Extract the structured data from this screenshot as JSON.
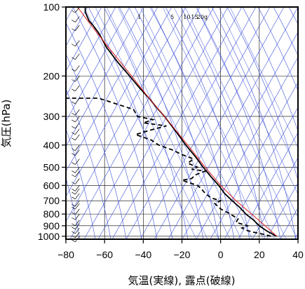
{
  "chart_data": {
    "type": "line",
    "title": "",
    "xlabel": "気温(実線), 露点(破線)",
    "ylabel": "気圧(hPa)",
    "xlim": [
      -80,
      40
    ],
    "ylim": [
      1030,
      100
    ],
    "y_scale": "log",
    "x_ticks": [
      -80,
      -60,
      -40,
      -20,
      0,
      20,
      40
    ],
    "x_tick_labels": [
      "−80",
      "−60",
      "−40",
      "−20",
      "0",
      "20",
      "40"
    ],
    "y_ticks": [
      100,
      200,
      300,
      400,
      500,
      600,
      700,
      800,
      900,
      1000
    ],
    "mixing_ratio_labels": [
      {
        "text": "1",
        "t": -42
      },
      {
        "text": "5",
        "t": -25
      },
      {
        "text": "10",
        "t": -17.5
      },
      {
        "text": "15",
        "t": -13.5
      },
      {
        "text": "20g",
        "t": -9.5
      }
    ],
    "series": [
      {
        "style": "solid",
        "color": "#000000",
        "points": [
          [
            1000,
            29
          ],
          [
            950,
            24
          ],
          [
            900,
            20
          ],
          [
            850,
            17
          ],
          [
            800,
            13
          ],
          [
            750,
            10
          ],
          [
            700,
            6
          ],
          [
            650,
            2
          ],
          [
            600,
            -1
          ],
          [
            550,
            -5
          ],
          [
            500,
            -9
          ],
          [
            450,
            -13
          ],
          [
            400,
            -18
          ],
          [
            350,
            -23
          ],
          [
            300,
            -29
          ],
          [
            275,
            -33
          ],
          [
            250,
            -37
          ],
          [
            225,
            -42
          ],
          [
            200,
            -47
          ],
          [
            175,
            -53
          ],
          [
            150,
            -59
          ],
          [
            130,
            -63
          ],
          [
            120,
            -66
          ],
          [
            115,
            -68
          ],
          [
            110,
            -69
          ],
          [
            105,
            -70
          ],
          [
            100,
            -70
          ]
        ]
      },
      {
        "style": "dashed",
        "color": "#000000",
        "points": [
          [
            1000,
            26
          ],
          [
            980,
            22
          ],
          [
            960,
            17
          ],
          [
            940,
            13
          ],
          [
            920,
            11
          ],
          [
            900,
            14
          ],
          [
            870,
            8
          ],
          [
            840,
            9
          ],
          [
            800,
            5
          ],
          [
            760,
            0
          ],
          [
            720,
            -3
          ],
          [
            700,
            0
          ],
          [
            680,
            -5
          ],
          [
            650,
            -8
          ],
          [
            620,
            -10
          ],
          [
            600,
            -12
          ],
          [
            570,
            -20
          ],
          [
            560,
            -15
          ],
          [
            540,
            -13
          ],
          [
            520,
            -8
          ],
          [
            510,
            -15
          ],
          [
            500,
            -12
          ],
          [
            480,
            -17
          ],
          [
            460,
            -14
          ],
          [
            440,
            -20
          ],
          [
            420,
            -25
          ],
          [
            400,
            -32
          ],
          [
            380,
            -36
          ],
          [
            360,
            -44
          ],
          [
            340,
            -34
          ],
          [
            330,
            -28
          ],
          [
            320,
            -40
          ],
          [
            310,
            -35
          ],
          [
            300,
            -43
          ],
          [
            280,
            -45
          ],
          [
            250,
            -63
          ],
          [
            250,
            -82
          ]
        ]
      },
      {
        "style": "solid",
        "color": "#dd2222",
        "points": [
          [
            1000,
            29
          ],
          [
            900,
            23
          ],
          [
            800,
            16
          ],
          [
            700,
            8
          ],
          [
            600,
            0
          ],
          [
            500,
            -8
          ],
          [
            400,
            -17
          ],
          [
            300,
            -29
          ],
          [
            250,
            -37
          ],
          [
            200,
            -46
          ],
          [
            150,
            -58
          ],
          [
            120,
            -67
          ],
          [
            100,
            -74
          ]
        ]
      }
    ],
    "wind_barbs": {
      "x": -73,
      "pressures": [
        1000,
        960,
        920,
        880,
        850,
        800,
        760,
        720,
        700,
        650,
        620,
        600,
        560,
        520,
        500,
        460,
        420,
        400,
        360,
        340,
        320,
        300,
        280,
        250,
        220,
        200,
        180,
        160,
        140,
        120,
        110,
        100
      ]
    }
  }
}
